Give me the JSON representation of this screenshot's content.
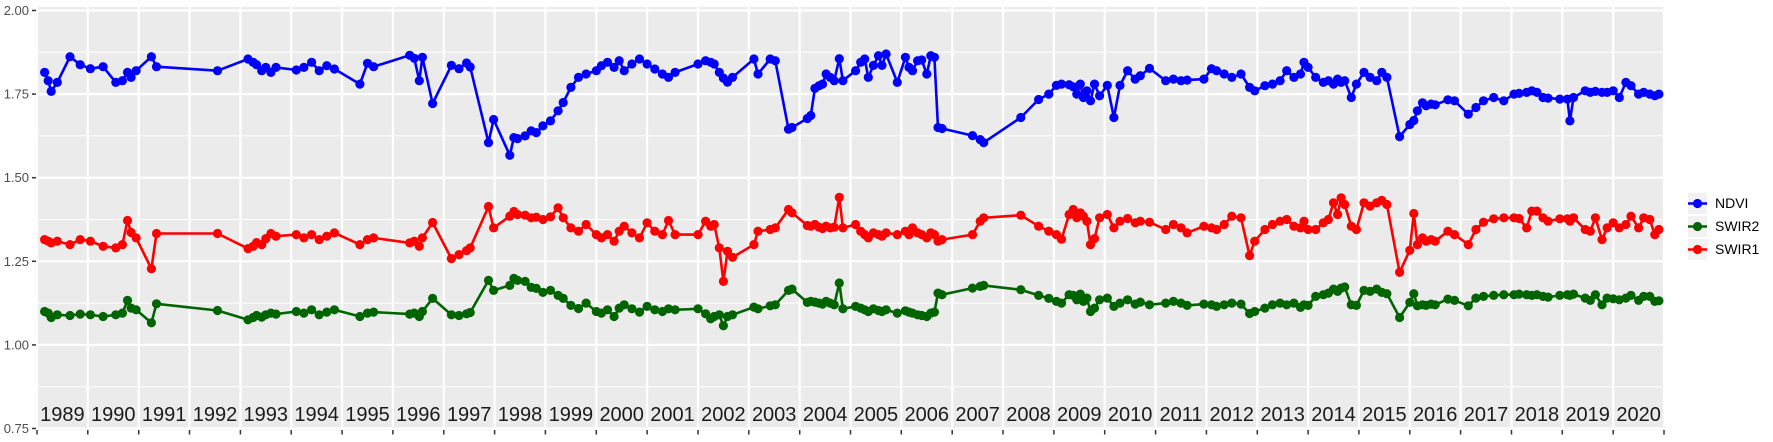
{
  "chart_data": {
    "type": "line",
    "title": "",
    "xlabel": "",
    "ylabel": "",
    "xlim": [
      1989.0,
      2021.0
    ],
    "ylim": [
      0.7455,
      2.0105
    ],
    "x_gridlines": [
      1989,
      1990,
      1991,
      1992,
      1993,
      1994,
      1995,
      1996,
      1997,
      1998,
      1999,
      2000,
      2001,
      2002,
      2003,
      2004,
      2005,
      2006,
      2007,
      2008,
      2009,
      2010,
      2011,
      2012,
      2013,
      2014,
      2015,
      2016,
      2017,
      2018,
      2019,
      2020,
      2021
    ],
    "x_ticks": [
      1989,
      1990,
      1991,
      1992,
      1993,
      1994,
      1995,
      1996,
      1997,
      1998,
      1999,
      2000,
      2001,
      2002,
      2003,
      2004,
      2005,
      2006,
      2007,
      2008,
      2009,
      2010,
      2011,
      2012,
      2013,
      2014,
      2015,
      2016,
      2017,
      2018,
      2019,
      2020
    ],
    "y_ticks": [
      2.0,
      1.75,
      1.5,
      1.25,
      1.0,
      0.75
    ],
    "y_tick_labels": [
      "2.00",
      "1.75",
      "1.50",
      "1.25",
      "1.00",
      "0.75"
    ],
    "y_minor": [
      0.875,
      1.125,
      1.375,
      1.625,
      1.875
    ],
    "grid": "major-xy + minor-y, white on grey panel",
    "legend_position": "right",
    "style": {
      "panel_bg": "#EBEBEB",
      "grid_color": "#FFFFFF",
      "tick_color": "#333333",
      "y_label_color": "#4D4D4D",
      "x_label_color": "#1A1A1A",
      "legend_key_bg": "#F2F2F2",
      "page_bg": "#FFFFFF"
    },
    "series": [
      {
        "name": "NDVI",
        "color": "#0000FF",
        "column": 1
      },
      {
        "name": "SWIR2",
        "color": "#006400",
        "column": 2
      },
      {
        "name": "SWIR1",
        "color": "#FF0000",
        "column": 3
      }
    ],
    "columns": [
      "year_fraction",
      "NDVI",
      "SWIR2",
      "SWIR1"
    ],
    "rows": [
      [
        1989.15,
        1.815,
        1.1,
        1.315
      ],
      [
        1989.22,
        1.79,
        1.095,
        1.31
      ],
      [
        1989.28,
        1.758,
        1.082,
        1.305
      ],
      [
        1989.4,
        1.785,
        1.09,
        1.31
      ],
      [
        1989.65,
        1.862,
        1.088,
        1.3
      ],
      [
        1989.85,
        1.838,
        1.092,
        1.315
      ],
      [
        1990.05,
        1.826,
        1.09,
        1.31
      ],
      [
        1990.3,
        1.832,
        1.085,
        1.295
      ],
      [
        1990.55,
        1.785,
        1.09,
        1.29
      ],
      [
        1990.68,
        1.79,
        1.095,
        1.3
      ],
      [
        1990.78,
        1.815,
        1.133,
        1.372
      ],
      [
        1990.85,
        1.8,
        1.11,
        1.336
      ],
      [
        1990.95,
        1.82,
        1.105,
        1.32
      ],
      [
        1991.25,
        1.862,
        1.066,
        1.228
      ],
      [
        1991.35,
        1.832,
        1.123,
        1.333
      ],
      [
        1992.55,
        1.82,
        1.103,
        1.333
      ],
      [
        1993.15,
        1.855,
        1.075,
        1.288
      ],
      [
        1993.25,
        1.845,
        1.082,
        1.295
      ],
      [
        1993.32,
        1.838,
        1.088,
        1.306
      ],
      [
        1993.42,
        1.82,
        1.083,
        1.3
      ],
      [
        1993.5,
        1.83,
        1.09,
        1.318
      ],
      [
        1993.6,
        1.815,
        1.095,
        1.333
      ],
      [
        1993.7,
        1.83,
        1.092,
        1.325
      ],
      [
        1994.1,
        1.822,
        1.1,
        1.33
      ],
      [
        1994.25,
        1.83,
        1.095,
        1.32
      ],
      [
        1994.4,
        1.845,
        1.105,
        1.33
      ],
      [
        1994.55,
        1.82,
        1.09,
        1.315
      ],
      [
        1994.7,
        1.835,
        1.098,
        1.325
      ],
      [
        1994.85,
        1.825,
        1.105,
        1.335
      ],
      [
        1995.35,
        1.78,
        1.085,
        1.3
      ],
      [
        1995.5,
        1.842,
        1.095,
        1.315
      ],
      [
        1995.62,
        1.832,
        1.098,
        1.32
      ],
      [
        1996.33,
        1.866,
        1.092,
        1.305
      ],
      [
        1996.42,
        1.857,
        1.095,
        1.31
      ],
      [
        1996.52,
        1.79,
        1.085,
        1.295
      ],
      [
        1996.58,
        1.86,
        1.1,
        1.32
      ],
      [
        1996.78,
        1.722,
        1.139,
        1.366
      ],
      [
        1997.15,
        1.836,
        1.09,
        1.258
      ],
      [
        1997.3,
        1.826,
        1.088,
        1.27
      ],
      [
        1997.45,
        1.843,
        1.093,
        1.282
      ],
      [
        1997.52,
        1.831,
        1.097,
        1.29
      ],
      [
        1997.88,
        1.605,
        1.193,
        1.414
      ],
      [
        1997.98,
        1.674,
        1.163,
        1.35
      ],
      [
        1998.3,
        1.567,
        1.178,
        1.385
      ],
      [
        1998.38,
        1.62,
        1.199,
        1.399
      ],
      [
        1998.45,
        1.617,
        1.193,
        1.39
      ],
      [
        1998.6,
        1.625,
        1.19,
        1.388
      ],
      [
        1998.72,
        1.64,
        1.172,
        1.38
      ],
      [
        1998.82,
        1.635,
        1.169,
        1.382
      ],
      [
        1998.95,
        1.655,
        1.157,
        1.375
      ],
      [
        1999.1,
        1.67,
        1.163,
        1.383
      ],
      [
        1999.25,
        1.7,
        1.148,
        1.41
      ],
      [
        1999.35,
        1.725,
        1.139,
        1.38
      ],
      [
        1999.5,
        1.77,
        1.118,
        1.35
      ],
      [
        1999.65,
        1.8,
        1.109,
        1.34
      ],
      [
        1999.8,
        1.81,
        1.125,
        1.36
      ],
      [
        2000.0,
        1.82,
        1.1,
        1.33
      ],
      [
        2000.1,
        1.835,
        1.095,
        1.32
      ],
      [
        2000.22,
        1.845,
        1.105,
        1.33
      ],
      [
        2000.35,
        1.83,
        1.085,
        1.31
      ],
      [
        2000.45,
        1.85,
        1.11,
        1.34
      ],
      [
        2000.55,
        1.82,
        1.12,
        1.355
      ],
      [
        2000.7,
        1.84,
        1.108,
        1.335
      ],
      [
        2000.85,
        1.855,
        1.098,
        1.32
      ],
      [
        2001.0,
        1.84,
        1.115,
        1.365
      ],
      [
        2001.15,
        1.825,
        1.105,
        1.34
      ],
      [
        2001.3,
        1.81,
        1.1,
        1.33
      ],
      [
        2001.42,
        1.8,
        1.108,
        1.372
      ],
      [
        2001.55,
        1.815,
        1.105,
        1.33
      ],
      [
        2002.0,
        1.84,
        1.108,
        1.33
      ],
      [
        2002.15,
        1.85,
        1.093,
        1.37
      ],
      [
        2002.25,
        1.845,
        1.078,
        1.355
      ],
      [
        2002.32,
        1.84,
        1.085,
        1.36
      ],
      [
        2002.42,
        1.815,
        1.09,
        1.29
      ],
      [
        2002.5,
        1.798,
        1.057,
        1.19
      ],
      [
        2002.58,
        1.786,
        1.085,
        1.28
      ],
      [
        2002.68,
        1.8,
        1.09,
        1.262
      ],
      [
        2003.1,
        1.855,
        1.113,
        1.3
      ],
      [
        2003.18,
        1.81,
        1.108,
        1.34
      ],
      [
        2003.42,
        1.855,
        1.117,
        1.345
      ],
      [
        2003.52,
        1.85,
        1.12,
        1.35
      ],
      [
        2003.78,
        1.645,
        1.163,
        1.405
      ],
      [
        2003.85,
        1.65,
        1.167,
        1.395
      ],
      [
        2004.15,
        1.677,
        1.127,
        1.357
      ],
      [
        2004.22,
        1.686,
        1.13,
        1.355
      ],
      [
        2004.3,
        1.767,
        1.128,
        1.36
      ],
      [
        2004.38,
        1.775,
        1.125,
        1.352
      ],
      [
        2004.45,
        1.78,
        1.122,
        1.348
      ],
      [
        2004.52,
        1.81,
        1.13,
        1.355
      ],
      [
        2004.6,
        1.8,
        1.125,
        1.35
      ],
      [
        2004.68,
        1.79,
        1.12,
        1.352
      ],
      [
        2004.78,
        1.856,
        1.185,
        1.441
      ],
      [
        2004.85,
        1.79,
        1.108,
        1.35
      ],
      [
        2005.1,
        1.82,
        1.115,
        1.36
      ],
      [
        2005.2,
        1.845,
        1.11,
        1.34
      ],
      [
        2005.28,
        1.855,
        1.105,
        1.33
      ],
      [
        2005.35,
        1.8,
        1.1,
        1.32
      ],
      [
        2005.45,
        1.836,
        1.108,
        1.335
      ],
      [
        2005.55,
        1.865,
        1.103,
        1.33
      ],
      [
        2005.62,
        1.836,
        1.1,
        1.325
      ],
      [
        2005.7,
        1.87,
        1.105,
        1.335
      ],
      [
        2005.92,
        1.785,
        1.095,
        1.33
      ],
      [
        2006.08,
        1.86,
        1.102,
        1.34
      ],
      [
        2006.15,
        1.83,
        1.098,
        1.33
      ],
      [
        2006.22,
        1.82,
        1.095,
        1.35
      ],
      [
        2006.32,
        1.85,
        1.09,
        1.335
      ],
      [
        2006.4,
        1.852,
        1.088,
        1.33
      ],
      [
        2006.5,
        1.81,
        1.085,
        1.32
      ],
      [
        2006.58,
        1.865,
        1.095,
        1.335
      ],
      [
        2006.65,
        1.86,
        1.098,
        1.33
      ],
      [
        2006.72,
        1.65,
        1.155,
        1.31
      ],
      [
        2006.8,
        1.647,
        1.15,
        1.315
      ],
      [
        2007.4,
        1.626,
        1.17,
        1.33
      ],
      [
        2007.55,
        1.614,
        1.175,
        1.37
      ],
      [
        2007.62,
        1.605,
        1.178,
        1.38
      ],
      [
        2008.35,
        1.68,
        1.165,
        1.388
      ],
      [
        2008.7,
        1.734,
        1.148,
        1.355
      ],
      [
        2008.9,
        1.75,
        1.139,
        1.34
      ],
      [
        2009.05,
        1.776,
        1.13,
        1.33
      ],
      [
        2009.15,
        1.78,
        1.125,
        1.316
      ],
      [
        2009.3,
        1.778,
        1.15,
        1.39
      ],
      [
        2009.38,
        1.772,
        1.148,
        1.405
      ],
      [
        2009.45,
        1.75,
        1.135,
        1.38
      ],
      [
        2009.52,
        1.78,
        1.152,
        1.395
      ],
      [
        2009.58,
        1.74,
        1.13,
        1.385
      ],
      [
        2009.65,
        1.76,
        1.14,
        1.37
      ],
      [
        2009.72,
        1.73,
        1.1,
        1.3
      ],
      [
        2009.8,
        1.78,
        1.11,
        1.318
      ],
      [
        2009.9,
        1.745,
        1.135,
        1.38
      ],
      [
        2010.05,
        1.776,
        1.14,
        1.39
      ],
      [
        2010.18,
        1.68,
        1.115,
        1.35
      ],
      [
        2010.3,
        1.776,
        1.125,
        1.37
      ],
      [
        2010.45,
        1.82,
        1.135,
        1.378
      ],
      [
        2010.6,
        1.795,
        1.122,
        1.365
      ],
      [
        2010.7,
        1.805,
        1.128,
        1.37
      ],
      [
        2010.88,
        1.827,
        1.12,
        1.367
      ],
      [
        2011.2,
        1.79,
        1.125,
        1.345
      ],
      [
        2011.35,
        1.795,
        1.13,
        1.36
      ],
      [
        2011.5,
        1.79,
        1.125,
        1.35
      ],
      [
        2011.62,
        1.792,
        1.118,
        1.335
      ],
      [
        2011.95,
        1.795,
        1.122,
        1.355
      ],
      [
        2012.1,
        1.826,
        1.12,
        1.35
      ],
      [
        2012.2,
        1.82,
        1.115,
        1.345
      ],
      [
        2012.35,
        1.81,
        1.12,
        1.36
      ],
      [
        2012.5,
        1.8,
        1.125,
        1.385
      ],
      [
        2012.68,
        1.81,
        1.122,
        1.38
      ],
      [
        2012.85,
        1.77,
        1.094,
        1.267
      ],
      [
        2012.95,
        1.76,
        1.1,
        1.31
      ],
      [
        2013.15,
        1.775,
        1.11,
        1.345
      ],
      [
        2013.3,
        1.78,
        1.12,
        1.36
      ],
      [
        2013.45,
        1.79,
        1.125,
        1.37
      ],
      [
        2013.58,
        1.82,
        1.12,
        1.375
      ],
      [
        2013.72,
        1.8,
        1.125,
        1.355
      ],
      [
        2013.85,
        1.81,
        1.112,
        1.35
      ],
      [
        2013.92,
        1.845,
        1.12,
        1.37
      ],
      [
        2014.0,
        1.83,
        1.118,
        1.345
      ],
      [
        2014.15,
        1.8,
        1.145,
        1.345
      ],
      [
        2014.3,
        1.785,
        1.15,
        1.365
      ],
      [
        2014.4,
        1.79,
        1.155,
        1.375
      ],
      [
        2014.5,
        1.78,
        1.167,
        1.425
      ],
      [
        2014.58,
        1.795,
        1.16,
        1.39
      ],
      [
        2014.65,
        1.785,
        1.17,
        1.44
      ],
      [
        2014.72,
        1.79,
        1.173,
        1.42
      ],
      [
        2014.85,
        1.74,
        1.12,
        1.355
      ],
      [
        2014.95,
        1.78,
        1.118,
        1.345
      ],
      [
        2015.1,
        1.815,
        1.163,
        1.425
      ],
      [
        2015.22,
        1.8,
        1.16,
        1.415
      ],
      [
        2015.35,
        1.79,
        1.167,
        1.425
      ],
      [
        2015.45,
        1.815,
        1.157,
        1.432
      ],
      [
        2015.55,
        1.8,
        1.153,
        1.42
      ],
      [
        2015.8,
        1.623,
        1.082,
        1.217
      ],
      [
        2016.0,
        1.659,
        1.127,
        1.283
      ],
      [
        2016.08,
        1.671,
        1.153,
        1.393
      ],
      [
        2016.15,
        1.7,
        1.117,
        1.3
      ],
      [
        2016.25,
        1.724,
        1.12,
        1.32
      ],
      [
        2016.32,
        1.715,
        1.118,
        1.31
      ],
      [
        2016.42,
        1.72,
        1.122,
        1.315
      ],
      [
        2016.5,
        1.718,
        1.12,
        1.31
      ],
      [
        2016.75,
        1.733,
        1.137,
        1.34
      ],
      [
        2016.88,
        1.73,
        1.133,
        1.33
      ],
      [
        2017.15,
        1.69,
        1.117,
        1.3
      ],
      [
        2017.3,
        1.71,
        1.14,
        1.345
      ],
      [
        2017.45,
        1.73,
        1.145,
        1.367
      ],
      [
        2017.65,
        1.74,
        1.148,
        1.377
      ],
      [
        2017.85,
        1.73,
        1.15,
        1.38
      ],
      [
        2018.05,
        1.75,
        1.15,
        1.38
      ],
      [
        2018.15,
        1.752,
        1.152,
        1.378
      ],
      [
        2018.3,
        1.755,
        1.15,
        1.35
      ],
      [
        2018.4,
        1.76,
        1.148,
        1.4
      ],
      [
        2018.5,
        1.755,
        1.15,
        1.4
      ],
      [
        2018.62,
        1.74,
        1.145,
        1.38
      ],
      [
        2018.72,
        1.738,
        1.143,
        1.37
      ],
      [
        2018.95,
        1.735,
        1.148,
        1.377
      ],
      [
        2019.1,
        1.735,
        1.15,
        1.377
      ],
      [
        2019.15,
        1.67,
        1.148,
        1.37
      ],
      [
        2019.22,
        1.74,
        1.152,
        1.38
      ],
      [
        2019.45,
        1.76,
        1.14,
        1.345
      ],
      [
        2019.55,
        1.755,
        1.133,
        1.34
      ],
      [
        2019.65,
        1.758,
        1.15,
        1.38
      ],
      [
        2019.78,
        1.755,
        1.12,
        1.315
      ],
      [
        2019.88,
        1.755,
        1.14,
        1.35
      ],
      [
        2020.0,
        1.76,
        1.138,
        1.365
      ],
      [
        2020.12,
        1.74,
        1.135,
        1.35
      ],
      [
        2020.25,
        1.785,
        1.14,
        1.36
      ],
      [
        2020.35,
        1.775,
        1.148,
        1.385
      ],
      [
        2020.5,
        1.75,
        1.133,
        1.35
      ],
      [
        2020.6,
        1.755,
        1.145,
        1.38
      ],
      [
        2020.72,
        1.75,
        1.145,
        1.375
      ],
      [
        2020.82,
        1.745,
        1.13,
        1.33
      ],
      [
        2020.9,
        1.75,
        1.132,
        1.345
      ]
    ]
  },
  "legend": {
    "entries": [
      "NDVI",
      "SWIR2",
      "SWIR1"
    ]
  }
}
